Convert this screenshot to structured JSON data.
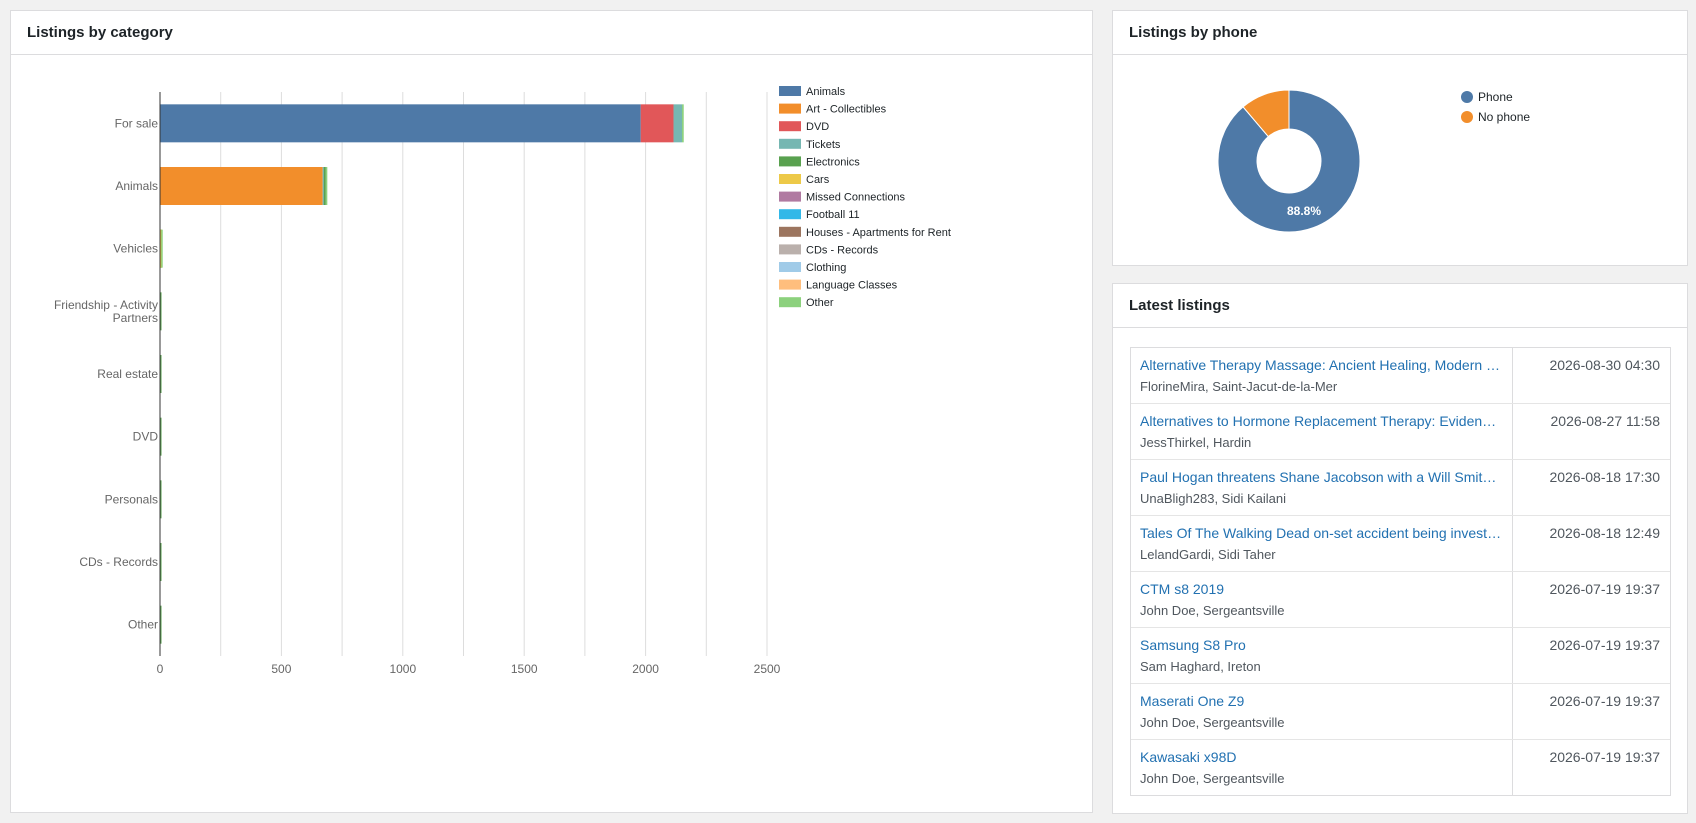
{
  "panels": {
    "category_title": "Listings by category",
    "phone_title": "Listings by phone",
    "latest_title": "Latest listings"
  },
  "chart_data": [
    {
      "type": "bar",
      "orientation": "horizontal",
      "stacked": true,
      "title": "Listings by category",
      "categories": [
        "For sale",
        "Animals",
        "Vehicles",
        "Friendship - Activity Partners",
        "Real estate",
        "DVD",
        "Personals",
        "CDs - Records",
        "Other"
      ],
      "xlim": [
        0,
        2500
      ],
      "xticks": [
        0,
        500,
        1000,
        1500,
        2000,
        2500
      ],
      "grid": true,
      "legend_position": "right",
      "series": [
        {
          "name": "Animals",
          "color": "#4e79a7",
          "values": [
            1980,
            0,
            0,
            0,
            0,
            0,
            0,
            0,
            0
          ]
        },
        {
          "name": "Art - Collectibles",
          "color": "#f28e2b",
          "values": [
            0,
            670,
            0,
            0,
            0,
            0,
            0,
            0,
            0
          ]
        },
        {
          "name": "DVD",
          "color": "#e15759",
          "values": [
            135,
            0,
            0,
            0,
            0,
            0,
            0,
            0,
            0
          ]
        },
        {
          "name": "Tickets",
          "color": "#76b7b2",
          "values": [
            35,
            5,
            0,
            0,
            0,
            0,
            0,
            0,
            0
          ]
        },
        {
          "name": "Electronics",
          "color": "#59a14f",
          "values": [
            0,
            8,
            2,
            1,
            1,
            1,
            1,
            1,
            1
          ]
        },
        {
          "name": "Cars",
          "color": "#edc948",
          "values": [
            0,
            0,
            3,
            0,
            0,
            0,
            0,
            0,
            0
          ]
        },
        {
          "name": "Missed Connections",
          "color": "#b07aa1",
          "values": [
            0,
            0,
            0,
            0,
            0,
            0,
            0,
            0,
            0
          ]
        },
        {
          "name": "Football 11",
          "color": "#32b8e8",
          "values": [
            0,
            0,
            0,
            0,
            0,
            0,
            0,
            0,
            0
          ]
        },
        {
          "name": "Houses - Apartments for Rent",
          "color": "#9c755f",
          "values": [
            0,
            0,
            0,
            0,
            0,
            0,
            0,
            0,
            0
          ]
        },
        {
          "name": "CDs - Records",
          "color": "#bab0ac",
          "values": [
            0,
            0,
            0,
            0,
            0,
            0,
            0,
            0,
            0
          ]
        },
        {
          "name": "Clothing",
          "color": "#a0cbe8",
          "values": [
            0,
            0,
            0,
            0,
            0,
            0,
            0,
            0,
            0
          ]
        },
        {
          "name": "Language Classes",
          "color": "#ffbe7d",
          "values": [
            0,
            0,
            0,
            0,
            0,
            0,
            0,
            0,
            0
          ]
        },
        {
          "name": "Other",
          "color": "#8cd17d",
          "values": [
            7,
            3,
            3,
            0,
            0,
            0,
            0,
            0,
            0
          ]
        }
      ]
    },
    {
      "type": "pie",
      "donut": true,
      "title": "Listings by phone",
      "legend_position": "right",
      "labels": [
        "Phone",
        "No phone"
      ],
      "values": [
        88.8,
        11.2
      ],
      "colors": [
        "#4e79a7",
        "#f28e2b"
      ],
      "data_label": "88.8%"
    }
  ],
  "latest": {
    "rows": [
      {
        "title": "Alternative Therapy Massage: Ancient Healing, Modern Wellness",
        "meta": "FlorineMira, Saint-Jacut-de-la-Mer",
        "date": "2026-08-30 04:30"
      },
      {
        "title": "Alternatives to Hormone Replacement Therapy: Evidence-Based Options",
        "meta": "JessThirkel, Hardin",
        "date": "2026-08-27 11:58"
      },
      {
        "title": "Paul Hogan threatens Shane Jacobson with a Will Smith slap",
        "meta": "UnaBligh283, Sidi Kailani",
        "date": "2026-08-18 17:30"
      },
      {
        "title": "Tales Of The Walking Dead on-set accident being investigated",
        "meta": "LelandGardi, Sidi Taher",
        "date": "2026-08-18 12:49"
      },
      {
        "title": "CTM s8 2019",
        "meta": "John Doe, Sergeantsville",
        "date": "2026-07-19 19:37"
      },
      {
        "title": "Samsung S8 Pro",
        "meta": "Sam Haghard, Ireton",
        "date": "2026-07-19 19:37"
      },
      {
        "title": "Maserati One Z9",
        "meta": "John Doe, Sergeantsville",
        "date": "2026-07-19 19:37"
      },
      {
        "title": "Kawasaki x98D",
        "meta": "John Doe, Sergeantsville",
        "date": "2026-07-19 19:37"
      }
    ]
  }
}
